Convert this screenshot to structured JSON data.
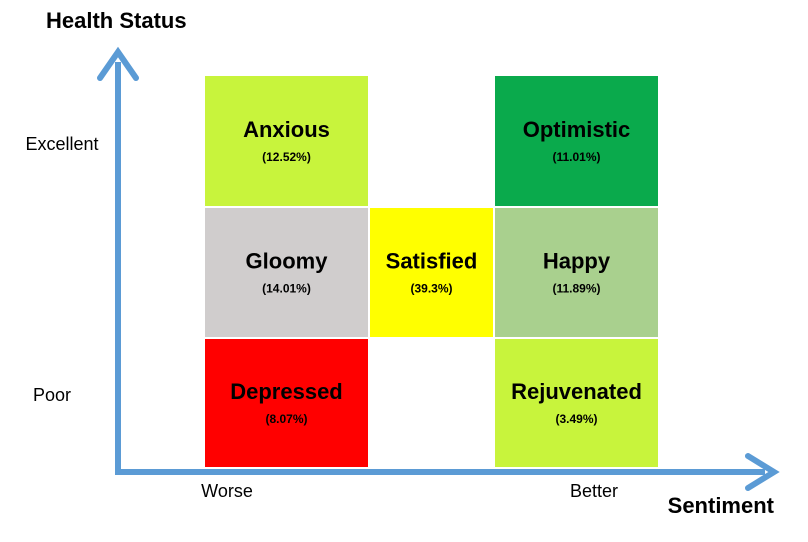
{
  "axes": {
    "y_title": "Health Status",
    "x_title": "Sentiment",
    "y_high": "Excellent",
    "y_low": "Poor",
    "x_low": "Worse",
    "x_high": "Better"
  },
  "nodes": [
    {
      "label": "Anxious",
      "share": "(12.52%)",
      "color": "#c8f43c"
    },
    {
      "label": "Optimistic",
      "share": "(11.01%)",
      "color": "#0aaa4c"
    },
    {
      "label": "Gloomy",
      "share": "(14.01%)",
      "color": "#d0cdcd"
    },
    {
      "label": "Satisfied",
      "share": "(39.3%)",
      "color": "#ffff00"
    },
    {
      "label": "Happy",
      "share": "(11.89%)",
      "color": "#a9d08e"
    },
    {
      "label": "Depressed",
      "share": "(8.07%)",
      "color": "#ff0000"
    },
    {
      "label": "Rejuvenated",
      "share": "(3.49%)",
      "color": "#c8f43c"
    }
  ]
}
